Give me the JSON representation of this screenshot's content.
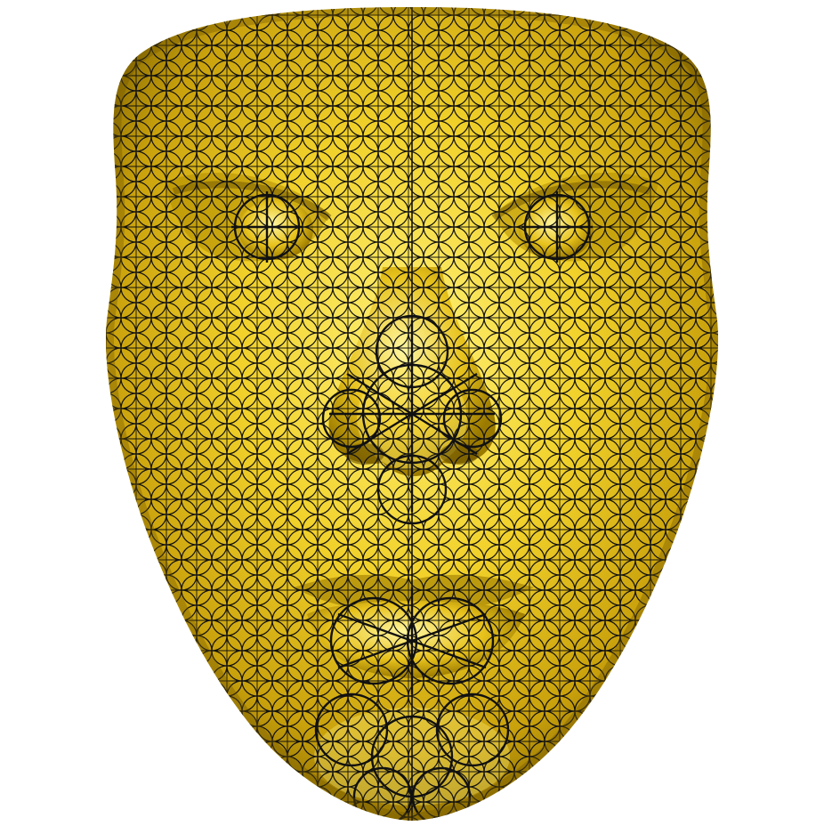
{
  "scene": {
    "background_color": "#ffffff",
    "surface_color": "#e8c21a",
    "highlight_color": "#fff07a",
    "shadow_color": "#8a6a00",
    "line_color": "#111111",
    "render_style": "shaded 3D face mesh with black circle-pattern texture lines"
  }
}
